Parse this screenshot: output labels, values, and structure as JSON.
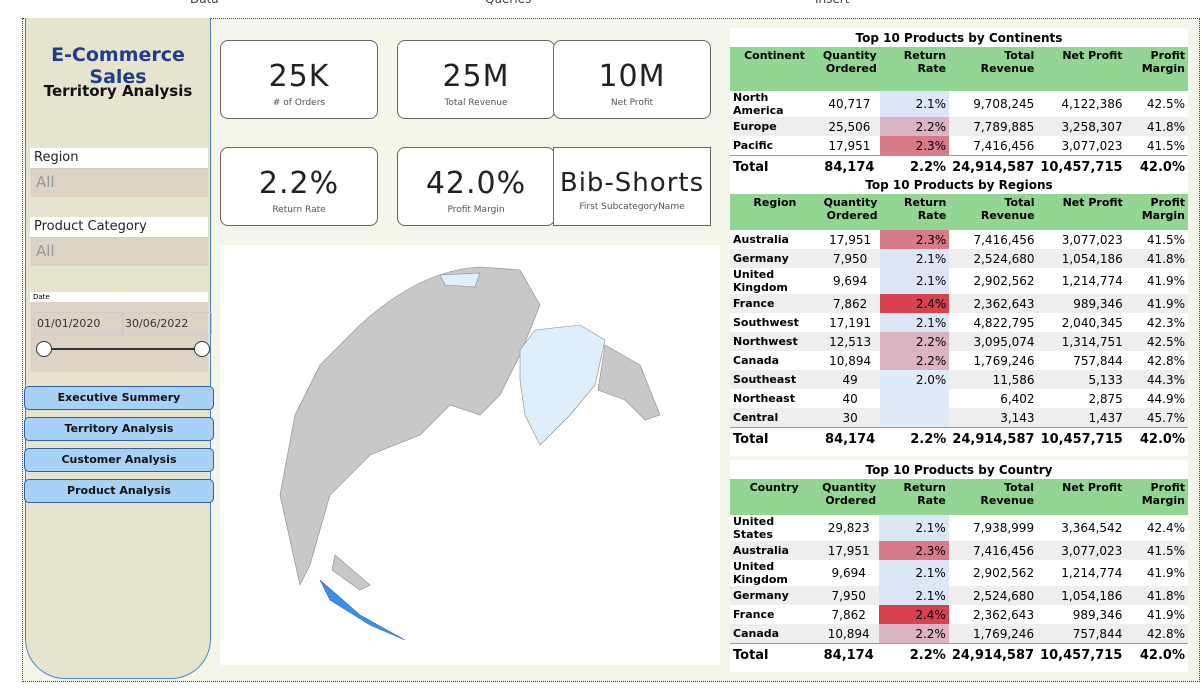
{
  "menu": [
    "Data",
    "Queries",
    "Insert"
  ],
  "sidebar": {
    "title": "E-Commerce Sales",
    "subtitle": "Territory Analysis",
    "filters": [
      {
        "label": "Region",
        "value": "All"
      },
      {
        "label": "Product Category",
        "value": "All"
      }
    ],
    "date": {
      "label": "Date",
      "start": "01/01/2020",
      "end": "30/06/2022"
    },
    "buttons": [
      "Executive Summery",
      "Territory Analysis",
      "Customer Analysis",
      "Product Analysis"
    ]
  },
  "kpis": [
    {
      "value": "25K",
      "label": "# of Orders"
    },
    {
      "value": "25M",
      "label": "Total Revenue"
    },
    {
      "value": "10M",
      "label": "Net Profit"
    },
    {
      "value": "2.2%",
      "label": "Return Rate"
    },
    {
      "value": "42.0%",
      "label": "Profit Margin"
    },
    {
      "value": "Bib-Shorts",
      "label": "First SubcategoryName"
    }
  ],
  "tables": [
    {
      "title": "Top 10 Products by Continents",
      "headers": [
        "Continent",
        "Quantity Ordered",
        "Return Rate",
        "Total Revenue",
        "Net Profit",
        "Profit Margin"
      ],
      "rows": [
        [
          "North America",
          "40,717",
          "2.1%",
          "9,708,245",
          "4,122,386",
          "42.5%"
        ],
        [
          "Europe",
          "25,506",
          "2.2%",
          "7,789,885",
          "3,258,307",
          "41.8%"
        ],
        [
          "Pacific",
          "17,951",
          "2.3%",
          "7,416,456",
          "3,077,023",
          "41.5%"
        ]
      ],
      "total": [
        "Total",
        "84,174",
        "2.2%",
        "24,914,587",
        "10,457,715",
        "42.0%"
      ]
    },
    {
      "title": "Top 10 Products by Regions",
      "headers": [
        "Region",
        "Quantity Ordered",
        "Return Rate",
        "Total Revenue",
        "Net Profit",
        "Profit Margin"
      ],
      "rows": [
        [
          "Australia",
          "17,951",
          "2.3%",
          "7,416,456",
          "3,077,023",
          "41.5%"
        ],
        [
          "Germany",
          "7,950",
          "2.1%",
          "2,524,680",
          "1,054,186",
          "41.8%"
        ],
        [
          "United Kingdom",
          "9,694",
          "2.1%",
          "2,902,562",
          "1,214,774",
          "41.9%"
        ],
        [
          "France",
          "7,862",
          "2.4%",
          "2,362,643",
          "989,346",
          "41.9%"
        ],
        [
          "Southwest",
          "17,191",
          "2.1%",
          "4,822,795",
          "2,040,345",
          "42.3%"
        ],
        [
          "Northwest",
          "12,513",
          "2.2%",
          "3,095,074",
          "1,314,751",
          "42.5%"
        ],
        [
          "Canada",
          "10,894",
          "2.2%",
          "1,769,246",
          "757,844",
          "42.8%"
        ],
        [
          "Southeast",
          "49",
          "2.0%",
          "11,586",
          "5,133",
          "44.3%"
        ],
        [
          "Northeast",
          "40",
          null,
          "6,402",
          "2,875",
          "44.9%"
        ],
        [
          "Central",
          "30",
          null,
          "3,143",
          "1,437",
          "45.7%"
        ]
      ],
      "total": [
        "Total",
        "84,174",
        "2.2%",
        "24,914,587",
        "10,457,715",
        "42.0%"
      ]
    },
    {
      "title": "Top 10 Products by Country",
      "headers": [
        "Country",
        "Quantity Ordered",
        "Return Rate",
        "Total Revenue",
        "Net Profit",
        "Profit Margin"
      ],
      "rows": [
        [
          "United States",
          "29,823",
          "2.1%",
          "7,938,999",
          "3,364,542",
          "42.4%"
        ],
        [
          "Australia",
          "17,951",
          "2.3%",
          "7,416,456",
          "3,077,023",
          "41.5%"
        ],
        [
          "United Kingdom",
          "9,694",
          "2.1%",
          "2,902,562",
          "1,214,774",
          "41.9%"
        ],
        [
          "Germany",
          "7,950",
          "2.1%",
          "2,524,680",
          "1,054,186",
          "41.8%"
        ],
        [
          "France",
          "7,862",
          "2.4%",
          "2,362,643",
          "989,346",
          "41.9%"
        ],
        [
          "Canada",
          "10,894",
          "2.2%",
          "1,769,246",
          "757,844",
          "42.8%"
        ]
      ],
      "total": [
        "Total",
        "84,174",
        "2.2%",
        "24,914,587",
        "10,457,715",
        "42.0%"
      ]
    }
  ]
}
